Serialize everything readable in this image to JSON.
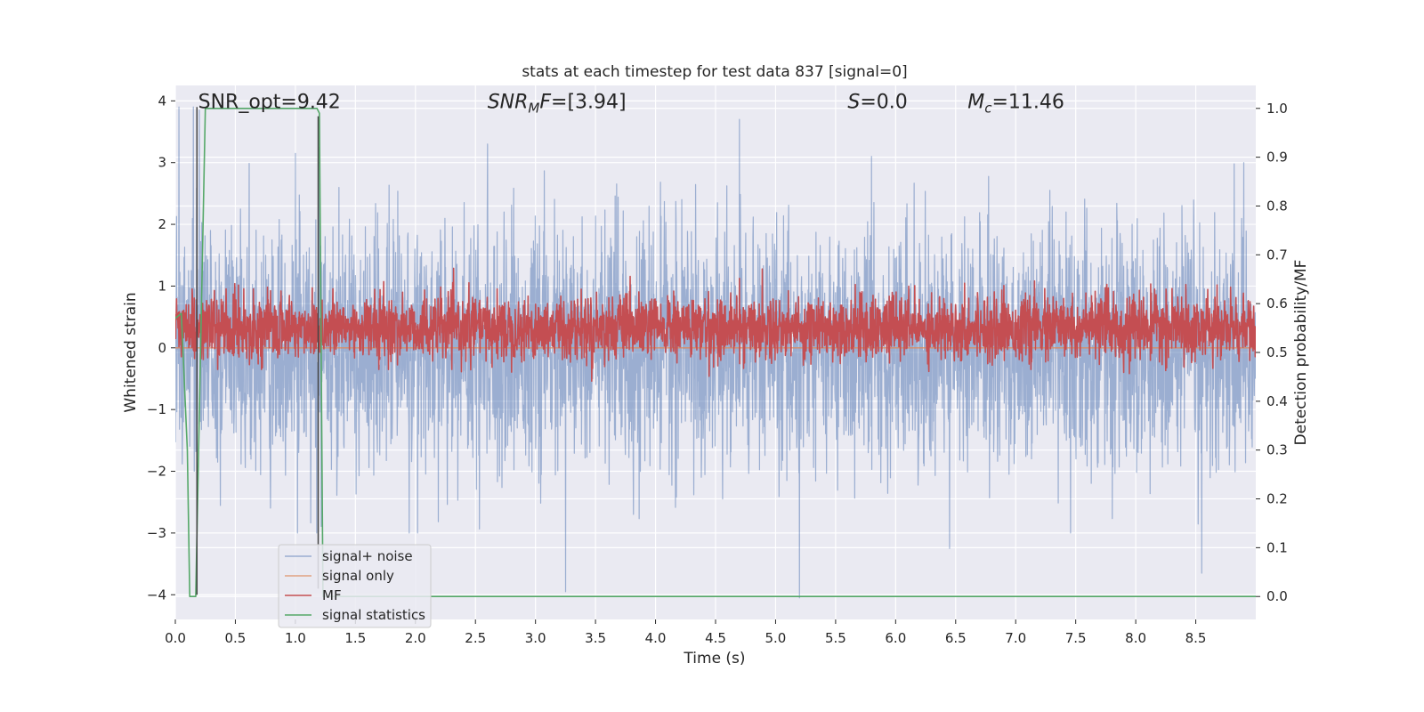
{
  "chart_data": {
    "type": "line",
    "title": "stats at each timestep for test data 837 [signal=0]",
    "xlabel": "Time (s)",
    "ylabel": "Whitened strain",
    "y2label": "Detection probability/MF",
    "xlim": [
      0.0,
      9.0
    ],
    "ylim": [
      -4.4,
      4.25
    ],
    "y2lim": [
      -0.047,
      1.047
    ],
    "x_ticks": [
      0.0,
      0.5,
      1.0,
      1.5,
      2.0,
      2.5,
      3.0,
      3.5,
      4.0,
      4.5,
      5.0,
      5.5,
      6.0,
      6.5,
      7.0,
      7.5,
      8.0,
      8.5
    ],
    "x_tick_labels": [
      "0.0",
      "0.5",
      "1.0",
      "1.5",
      "2.0",
      "2.5",
      "3.0",
      "3.5",
      "4.0",
      "4.5",
      "5.0",
      "5.5",
      "6.0",
      "6.5",
      "7.0",
      "7.5",
      "8.0",
      "8.5"
    ],
    "y_ticks": [
      4,
      3,
      2,
      1,
      0,
      -1,
      -2,
      -3,
      -4
    ],
    "y_tick_labels": [
      "4",
      "3",
      "2",
      "1",
      "0",
      "−1",
      "−2",
      "−3",
      "−4"
    ],
    "y2_ticks": [
      1.0,
      0.9,
      0.8,
      0.7,
      0.6,
      0.5,
      0.4,
      0.3,
      0.2,
      0.1,
      0.0
    ],
    "y2_tick_labels": [
      "1.0",
      "0.9",
      "0.8",
      "0.7",
      "0.6",
      "0.5",
      "0.4",
      "0.3",
      "0.2",
      "0.1",
      "0.0"
    ],
    "annotations": [
      {
        "name": "snr-opt",
        "x": 0.19,
        "y": 4.0,
        "html": "SNR_opt=9.42"
      },
      {
        "name": "snr-mf",
        "x": 2.6,
        "y": 4.0,
        "html": "<tspan font-style='italic'>SNR</tspan><tspan font-style='italic' font-size='15' dy='5'>M</tspan><tspan font-style='italic' dy='-5'>F</tspan>=[3.94]"
      },
      {
        "name": "s-stat",
        "x": 5.6,
        "y": 4.0,
        "html": "<tspan font-style='italic'>S</tspan>=0.0"
      },
      {
        "name": "chirp-mass",
        "x": 6.6,
        "y": 4.0,
        "html": "<tspan font-style='italic'>M</tspan><tspan font-style='italic' font-size='15' dy='5'>c</tspan><tspan dy='-5'>=11.46</tspan>"
      }
    ],
    "legend_location": "lower-left",
    "series": [
      {
        "name": "signal+ noise",
        "color": "#4c72b0",
        "opacity": 0.5,
        "axis": "left",
        "kind": "noise",
        "sigma": 0.95,
        "samples": 3600,
        "spikes": [
          [
            0.03,
            3.9
          ],
          [
            0.15,
            3.9
          ],
          [
            0.2,
            3.85
          ],
          [
            1.0,
            3.15
          ],
          [
            1.2,
            3.25
          ],
          [
            2.6,
            3.3
          ],
          [
            3.25,
            -3.95
          ],
          [
            4.7,
            3.7
          ],
          [
            5.2,
            -4.05
          ],
          [
            5.8,
            3.1
          ],
          [
            6.45,
            -3.25
          ],
          [
            8.55,
            -3.65
          ],
          [
            8.9,
            3.0
          ]
        ]
      },
      {
        "name": "signal only",
        "color": "#dd8452",
        "opacity": 0.7,
        "axis": "left",
        "kind": "flat",
        "value": 0.0
      },
      {
        "name": "MF",
        "color": "#c44e52",
        "opacity": 1.0,
        "axis": "right",
        "kind": "mf",
        "center": 0.55,
        "amp": 0.032,
        "samples": 3600
      },
      {
        "name": "signal statistics",
        "color": "#55a868",
        "opacity": 1.0,
        "axis": "right",
        "x": [
          0.0,
          0.05,
          0.1,
          0.12,
          0.17,
          0.25,
          0.5,
          1.0,
          1.18,
          1.2,
          1.23,
          1.5,
          3.0,
          5.0,
          7.0,
          9.0
        ],
        "y": [
          0.57,
          0.58,
          0.3,
          0.0,
          0.0,
          1.0,
          1.0,
          1.0,
          1.0,
          0.99,
          0.0,
          0.0,
          0.0,
          0.0,
          0.0,
          0.0
        ]
      }
    ],
    "vlines": [
      {
        "name": "merger-vline-1",
        "x": 0.18,
        "y0": -4.0,
        "y1": 3.9,
        "color": "#444444"
      },
      {
        "name": "merger-vline-2",
        "x": 1.19,
        "y0": -3.9,
        "y1": 3.75,
        "color": "#444444"
      }
    ]
  }
}
